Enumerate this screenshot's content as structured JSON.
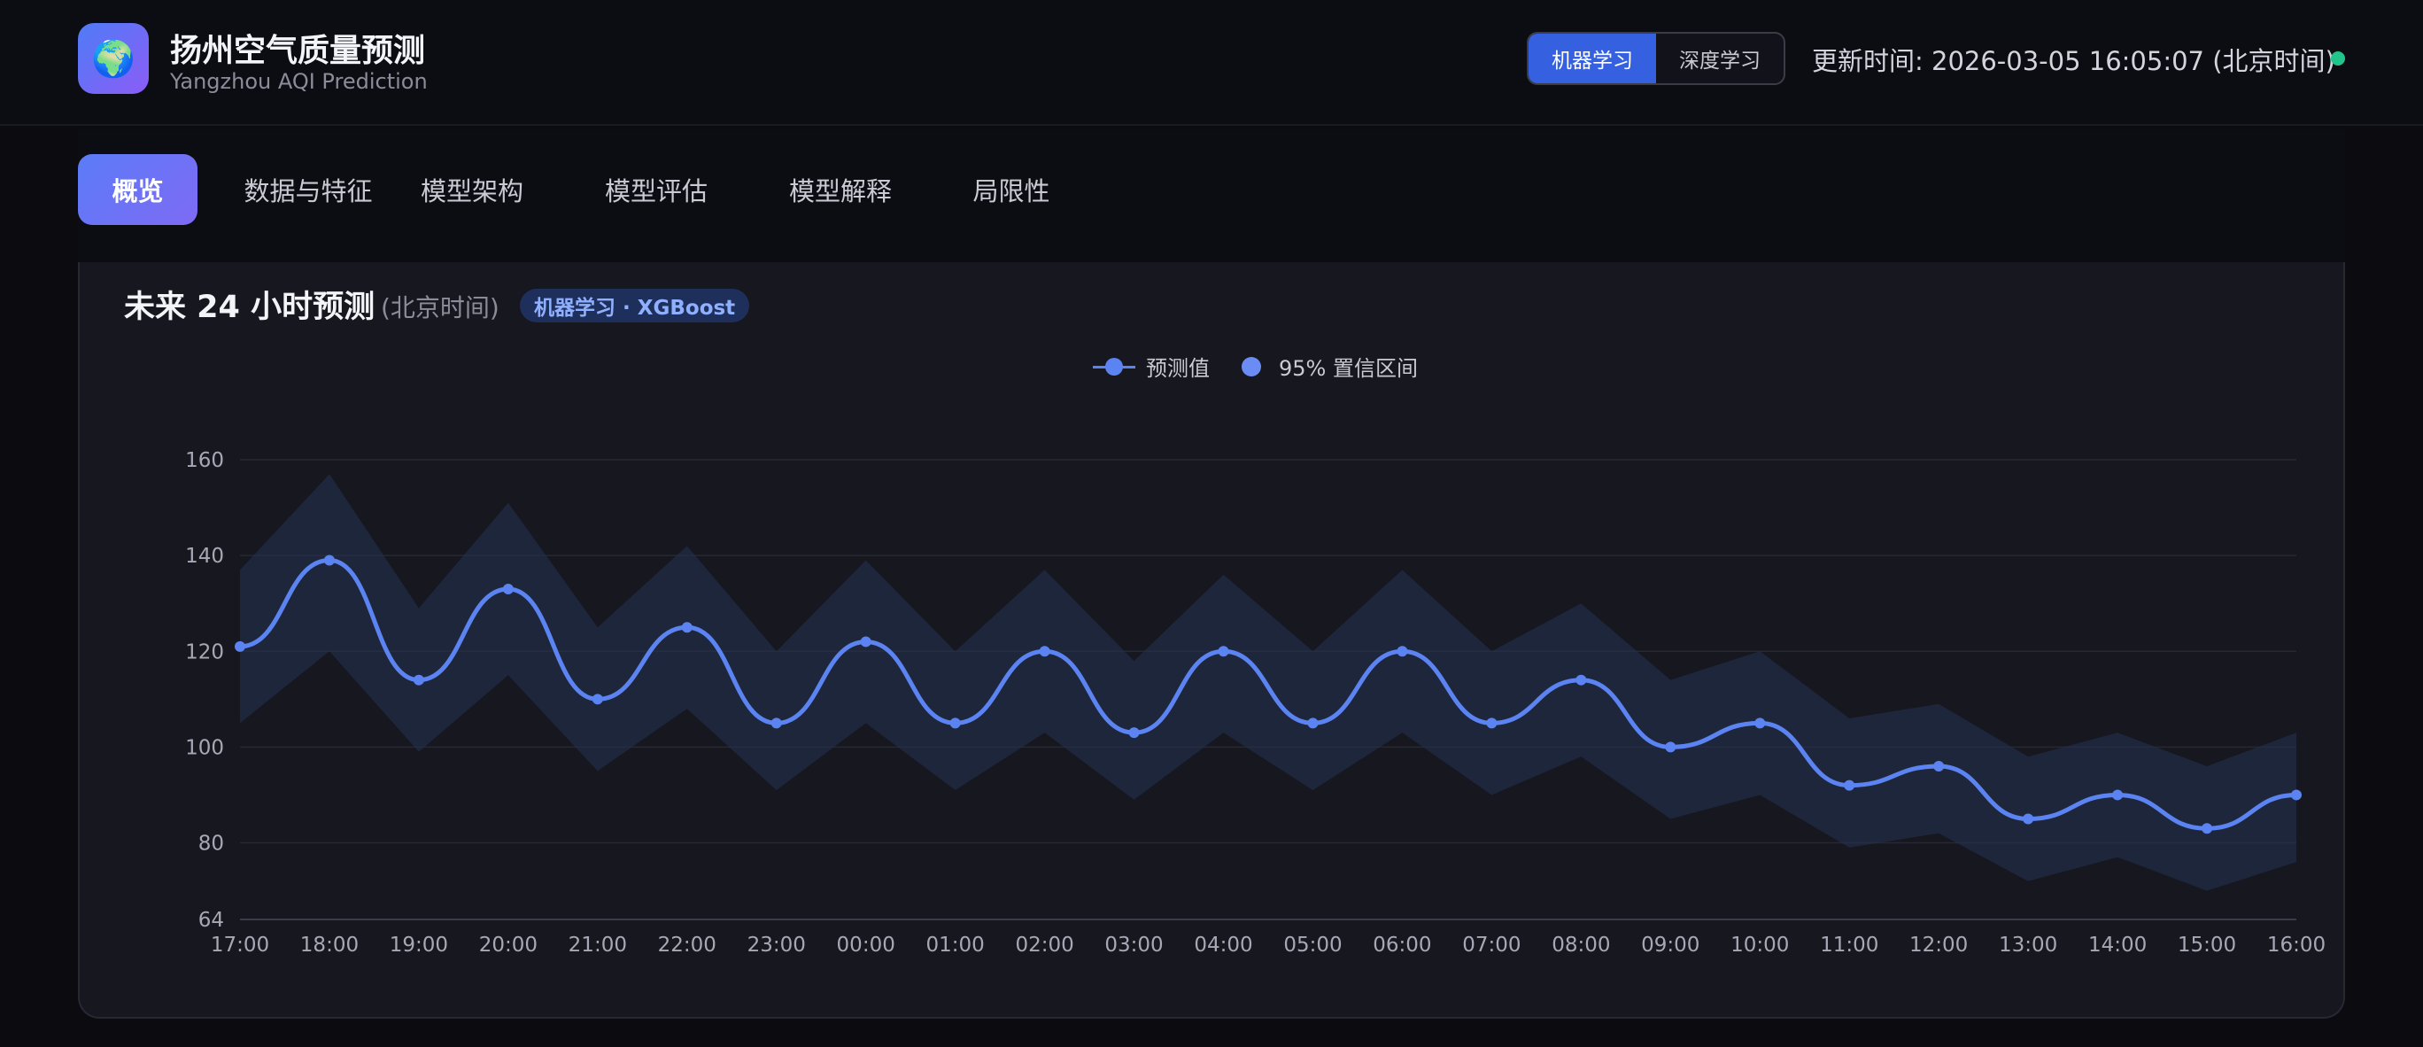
{
  "header": {
    "logo_icon": "globe-icon",
    "title": "扬州空气质量预测",
    "subtitle": "Yangzhou AQI Prediction",
    "mode_buttons": [
      {
        "label": "机器学习",
        "active": true
      },
      {
        "label": "深度学习",
        "active": false
      }
    ],
    "update_time": "更新时间: 2026-03-05 16:05:07 (北京时间)",
    "status_color": "#22c48b"
  },
  "tabs": [
    {
      "label": "概览",
      "active": true
    },
    {
      "label": "数据与特征",
      "active": false
    },
    {
      "label": "模型架构",
      "active": false
    },
    {
      "label": "模型评估",
      "active": false
    },
    {
      "label": "模型解释",
      "active": false
    },
    {
      "label": "局限性",
      "active": false
    }
  ],
  "card": {
    "title": "未来 24 小时预测",
    "title_note": "(北京时间)",
    "badge": "机器学习 · XGBoost"
  },
  "chart_data": {
    "type": "line",
    "title": "",
    "xlabel": "",
    "ylabel": "",
    "legend": [
      "预测值",
      "95% 置信区间"
    ],
    "legend_position": "top-center",
    "grid": true,
    "ylim": [
      64,
      160
    ],
    "yticks": [
      64,
      80,
      100,
      120,
      140,
      160
    ],
    "x": [
      "17:00",
      "18:00",
      "19:00",
      "20:00",
      "21:00",
      "22:00",
      "23:00",
      "00:00",
      "01:00",
      "02:00",
      "03:00",
      "04:00",
      "05:00",
      "06:00",
      "07:00",
      "08:00",
      "09:00",
      "10:00",
      "11:00",
      "12:00",
      "13:00",
      "14:00",
      "15:00",
      "16:00"
    ],
    "series": [
      {
        "name": "预测值",
        "color": "#5b84f2",
        "values": [
          121,
          139,
          114,
          133,
          110,
          125,
          105,
          122,
          105,
          120,
          103,
          120,
          105,
          120,
          105,
          114,
          100,
          105,
          92,
          96,
          85,
          90,
          83,
          90
        ]
      },
      {
        "name": "95% 置信区间",
        "color": "#6b8cf5",
        "upper": [
          137,
          157,
          129,
          151,
          125,
          142,
          120,
          139,
          120,
          137,
          118,
          136,
          120,
          137,
          120,
          130,
          114,
          120,
          106,
          109,
          98,
          103,
          96,
          103
        ],
        "lower": [
          105,
          120,
          99,
          115,
          95,
          108,
          91,
          105,
          91,
          103,
          89,
          103,
          91,
          103,
          90,
          98,
          85,
          90,
          79,
          82,
          72,
          77,
          70,
          76
        ]
      }
    ]
  }
}
